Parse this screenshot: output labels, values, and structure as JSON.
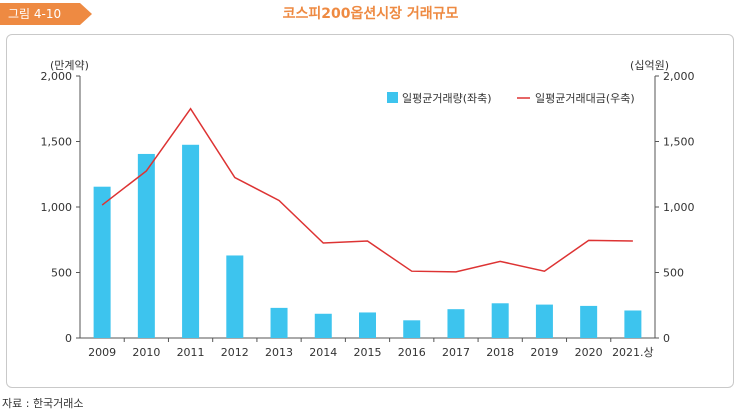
{
  "figure": {
    "label": "그림 4-10",
    "title": "코스피200옵션시장 거래규모",
    "source": "자료 : 한국거래소"
  },
  "colors": {
    "accent": "#ee8a42",
    "bar": "#3dc4ee",
    "line": "#dd3333"
  },
  "chart_data": {
    "type": "bar",
    "title": "코스피200옵션시장 거래규모",
    "categories": [
      "2009",
      "2010",
      "2011",
      "2012",
      "2013",
      "2014",
      "2015",
      "2016",
      "2017",
      "2018",
      "2019",
      "2020",
      "2021.상"
    ],
    "y_left": {
      "label": "(만계약)",
      "ylim": [
        0,
        2000
      ],
      "ticks": [
        "0",
        "500",
        "1,000",
        "1,500",
        "2,000"
      ]
    },
    "y_right": {
      "label": "(십억원)",
      "ylim": [
        0,
        2000
      ],
      "ticks": [
        "0",
        "500",
        "1,000",
        "1,500",
        "2,000"
      ]
    },
    "series": [
      {
        "name": "일평균거래량(좌축)",
        "type": "bar",
        "axis": "left",
        "values": [
          1155,
          1405,
          1475,
          630,
          230,
          185,
          195,
          135,
          220,
          265,
          255,
          245,
          210
        ]
      },
      {
        "name": "일평균거래대금(우축)",
        "type": "line",
        "axis": "right",
        "values": [
          1015,
          1275,
          1750,
          1225,
          1050,
          725,
          740,
          510,
          505,
          585,
          510,
          745,
          740
        ]
      }
    ],
    "legend": "top-right",
    "grid": false
  }
}
